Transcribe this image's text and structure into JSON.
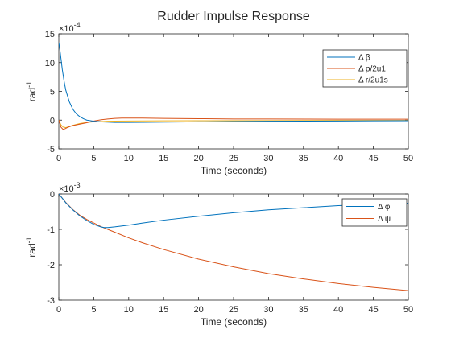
{
  "colors": {
    "series1": "#0072BD",
    "series2": "#D95319",
    "series3": "#EDB120",
    "axis": "#262626"
  },
  "chart_data": [
    {
      "type": "line",
      "title": "Rudder Impulse Response",
      "xlabel": "Time (seconds)",
      "ylabel": "rad",
      "ylabel_superscript": "-1",
      "exponent_label": "×10",
      "exponent_value": "-4",
      "xlim": [
        0,
        50
      ],
      "ylim": [
        -5,
        15
      ],
      "xticks": [
        "0",
        "5",
        "10",
        "15",
        "20",
        "25",
        "30",
        "35",
        "40",
        "45",
        "50"
      ],
      "yticks": [
        "-5",
        "0",
        "5",
        "10",
        "15"
      ],
      "legend_position": "top-right",
      "series": [
        {
          "name": "Δ β",
          "color": "#0072BD",
          "x": [
            0,
            0.15,
            0.3,
            0.5,
            0.75,
            1,
            1.5,
            2,
            2.5,
            3,
            3.5,
            4,
            5,
            6,
            7,
            8,
            10,
            12,
            15,
            20,
            25,
            30,
            35,
            40,
            45,
            50
          ],
          "y": [
            13.5,
            12.3,
            10.8,
            8.8,
            6.8,
            5.2,
            3.2,
            1.9,
            1.1,
            0.6,
            0.25,
            0,
            -0.2,
            -0.3,
            -0.35,
            -0.4,
            -0.4,
            -0.38,
            -0.35,
            -0.3,
            -0.25,
            -0.2,
            -0.18,
            -0.15,
            -0.12,
            -0.1
          ]
        },
        {
          "name": "Δ p/2u1",
          "color": "#D95319",
          "x": [
            0,
            0.3,
            0.6,
            0.9,
            1.2,
            1.6,
            2,
            3,
            4,
            5,
            6,
            7,
            8,
            9,
            10,
            12,
            15,
            20,
            25,
            30,
            40,
            50
          ],
          "y": [
            0,
            -1.2,
            -1.6,
            -1.5,
            -1.3,
            -1.1,
            -0.95,
            -0.7,
            -0.45,
            -0.15,
            0.05,
            0.2,
            0.3,
            0.35,
            0.35,
            0.35,
            0.3,
            0.25,
            0.2,
            0.2,
            0.15,
            0.15
          ]
        },
        {
          "name": "Δ r/2u1s",
          "color": "#EDB120",
          "x": [
            0,
            0.3,
            0.6,
            1,
            1.5,
            2,
            3,
            4,
            5,
            6,
            7,
            8,
            10,
            15,
            20,
            30,
            40,
            50
          ],
          "y": [
            0,
            -0.8,
            -1.2,
            -1.3,
            -1.1,
            -0.9,
            -0.6,
            -0.4,
            -0.3,
            -0.25,
            -0.2,
            -0.18,
            -0.15,
            -0.12,
            -0.1,
            -0.08,
            -0.06,
            -0.05
          ]
        }
      ]
    },
    {
      "type": "line",
      "xlabel": "Time (seconds)",
      "ylabel": "rad",
      "ylabel_superscript": "-1",
      "exponent_label": "×10",
      "exponent_value": "-3",
      "xlim": [
        0,
        50
      ],
      "ylim": [
        -3,
        0
      ],
      "xticks": [
        "0",
        "5",
        "10",
        "15",
        "20",
        "25",
        "30",
        "35",
        "40",
        "45",
        "50"
      ],
      "yticks": [
        "-3",
        "-2",
        "-1",
        "0"
      ],
      "legend_position": "top-right",
      "series": [
        {
          "name": "Δ φ",
          "color": "#0072BD",
          "x": [
            0,
            0.5,
            1,
            2,
            3,
            4,
            5,
            6,
            6.5,
            7,
            8,
            10,
            12,
            15,
            20,
            25,
            30,
            35,
            40,
            45,
            50
          ],
          "y": [
            0,
            -0.12,
            -0.25,
            -0.45,
            -0.62,
            -0.75,
            -0.86,
            -0.93,
            -0.95,
            -0.95,
            -0.93,
            -0.88,
            -0.82,
            -0.74,
            -0.63,
            -0.53,
            -0.45,
            -0.39,
            -0.33,
            -0.29,
            -0.26
          ]
        },
        {
          "name": "Δ ψ",
          "color": "#D95319",
          "x": [
            0,
            0.5,
            1,
            2,
            3,
            4,
            5,
            6,
            7,
            8,
            10,
            12,
            15,
            20,
            25,
            30,
            35,
            40,
            45,
            50
          ],
          "y": [
            0,
            -0.12,
            -0.24,
            -0.44,
            -0.6,
            -0.72,
            -0.82,
            -0.92,
            -1.0,
            -1.08,
            -1.24,
            -1.38,
            -1.57,
            -1.84,
            -2.06,
            -2.25,
            -2.4,
            -2.53,
            -2.64,
            -2.73
          ]
        }
      ]
    }
  ]
}
